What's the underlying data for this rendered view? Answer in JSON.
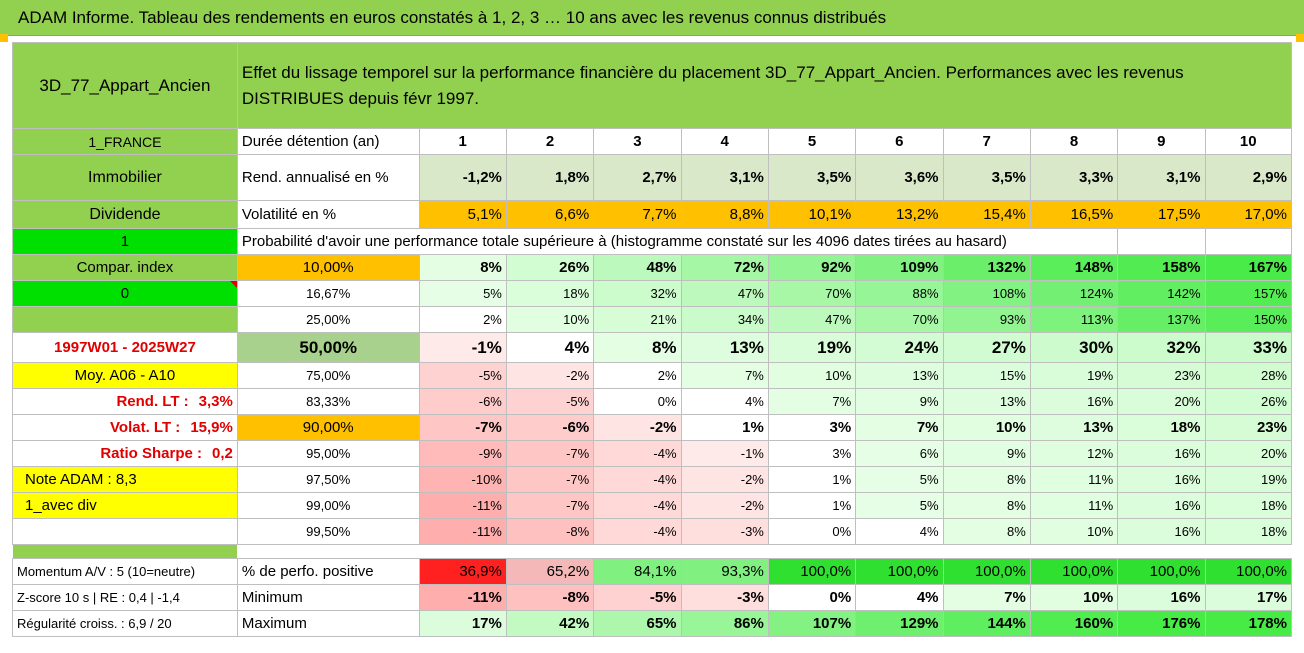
{
  "title": "ADAM Informe. Tableau des rendements en euros constatés à 1, 2, 3 … 10 ans avec les revenus connus distribués",
  "header": {
    "fund": "3D_77_Appart_Ancien",
    "description": "Effet du lissage temporel sur la performance financière du placement 3D_77_Appart_Ancien. Performances avec les revenus DISTRIBUES depuis févr 1997."
  },
  "left": {
    "country": "1_FRANCE",
    "category": "Immobilier",
    "dividend": "Dividende",
    "one": "1",
    "compar_index": "Compar. index",
    "zero": "0",
    "period": "1997W01 - 2025W27",
    "moy": "Moy. A06 - A10",
    "rend_lt_label": "Rend. LT :",
    "rend_lt_val": "3,3%",
    "volat_lt_label": "Volat. LT :",
    "volat_lt_val": "15,9%",
    "sharpe_label": "Ratio Sharpe :",
    "sharpe_val": "0,2",
    "note": "Note ADAM : 8,3",
    "avec_div": "1_avec div",
    "momentum": "Momentum A/V : 5 (10=neutre)",
    "zscore": "Z-score 10 s | RE : 0,4 | -1,4",
    "regularite": "Régularité croiss. : 6,9 / 20"
  },
  "rows": {
    "duree_label": "Durée détention (an)",
    "years": [
      "1",
      "2",
      "3",
      "4",
      "5",
      "6",
      "7",
      "8",
      "9",
      "10"
    ],
    "rend_label": "Rend. annualisé en %",
    "rend": [
      "-1,2%",
      "1,8%",
      "2,7%",
      "3,1%",
      "3,5%",
      "3,6%",
      "3,5%",
      "3,3%",
      "3,1%",
      "2,9%"
    ],
    "vol_label": "Volatilité en %",
    "vol": [
      "5,1%",
      "6,6%",
      "7,7%",
      "8,8%",
      "10,1%",
      "13,2%",
      "15,4%",
      "16,5%",
      "17,5%",
      "17,0%"
    ],
    "proba_label": "Probabilité d'avoir une performance totale supérieure à (histogramme constaté sur les 4096 dates tirées au hasard)",
    "percentiles": [
      {
        "p": "10,00%",
        "v": [
          "8%",
          "26%",
          "48%",
          "72%",
          "92%",
          "109%",
          "132%",
          "148%",
          "158%",
          "167%"
        ]
      },
      {
        "p": "16,67%",
        "v": [
          "5%",
          "18%",
          "32%",
          "47%",
          "70%",
          "88%",
          "108%",
          "124%",
          "142%",
          "157%"
        ]
      },
      {
        "p": "25,00%",
        "v": [
          "2%",
          "10%",
          "21%",
          "34%",
          "47%",
          "70%",
          "93%",
          "113%",
          "137%",
          "150%"
        ]
      },
      {
        "p": "50,00%",
        "v": [
          "-1%",
          "4%",
          "8%",
          "13%",
          "19%",
          "24%",
          "27%",
          "30%",
          "32%",
          "33%"
        ]
      },
      {
        "p": "75,00%",
        "v": [
          "-5%",
          "-2%",
          "2%",
          "7%",
          "10%",
          "13%",
          "15%",
          "19%",
          "23%",
          "28%"
        ]
      },
      {
        "p": "83,33%",
        "v": [
          "-6%",
          "-5%",
          "0%",
          "4%",
          "7%",
          "9%",
          "13%",
          "16%",
          "20%",
          "26%"
        ]
      },
      {
        "p": "90,00%",
        "v": [
          "-7%",
          "-6%",
          "-2%",
          "1%",
          "3%",
          "7%",
          "10%",
          "13%",
          "18%",
          "23%"
        ]
      },
      {
        "p": "95,00%",
        "v": [
          "-9%",
          "-7%",
          "-4%",
          "-1%",
          "3%",
          "6%",
          "9%",
          "12%",
          "16%",
          "20%"
        ]
      },
      {
        "p": "97,50%",
        "v": [
          "-10%",
          "-7%",
          "-4%",
          "-2%",
          "1%",
          "5%",
          "8%",
          "11%",
          "16%",
          "19%"
        ]
      },
      {
        "p": "99,00%",
        "v": [
          "-11%",
          "-7%",
          "-4%",
          "-2%",
          "1%",
          "5%",
          "8%",
          "11%",
          "16%",
          "18%"
        ]
      },
      {
        "p": "99,50%",
        "v": [
          "-11%",
          "-8%",
          "-4%",
          "-3%",
          "0%",
          "4%",
          "8%",
          "10%",
          "16%",
          "18%"
        ]
      }
    ],
    "positive_label": "% de perfo. positive",
    "positive": [
      "36,9%",
      "65,2%",
      "84,1%",
      "93,3%",
      "100,0%",
      "100,0%",
      "100,0%",
      "100,0%",
      "100,0%",
      "100,0%"
    ],
    "min_label": "Minimum",
    "min": [
      "-11%",
      "-8%",
      "-5%",
      "-3%",
      "0%",
      "4%",
      "7%",
      "10%",
      "16%",
      "17%"
    ],
    "max_label": "Maximum",
    "max": [
      "17%",
      "42%",
      "65%",
      "86%",
      "107%",
      "129%",
      "144%",
      "160%",
      "176%",
      "178%"
    ]
  },
  "colors": {
    "header_green": "#92d050",
    "bright_green": "#00e000",
    "orange": "#ffc000",
    "yellow": "#ffff00",
    "red_text": "#e00000"
  }
}
